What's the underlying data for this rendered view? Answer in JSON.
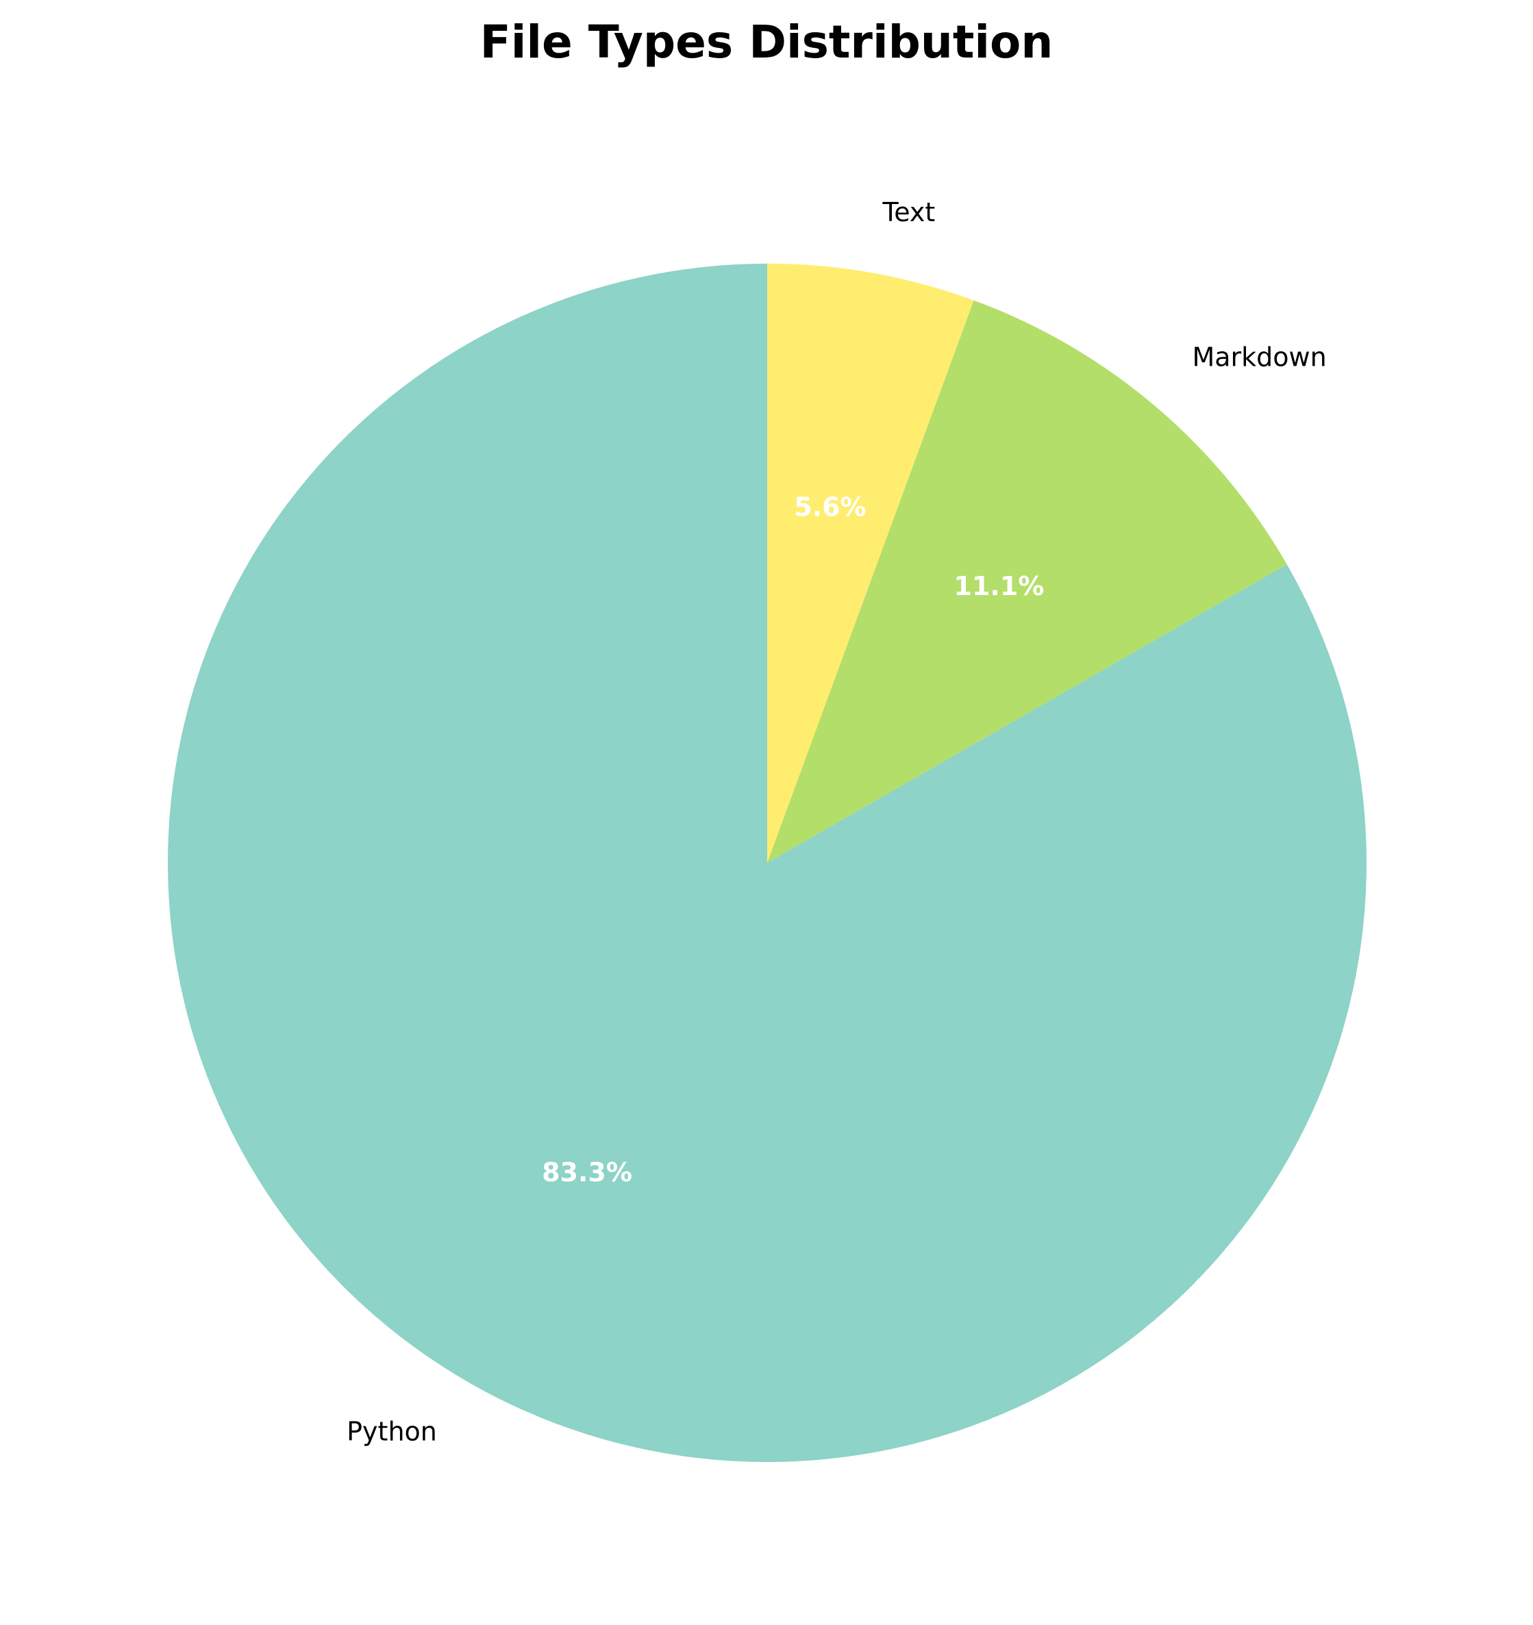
{
  "chart_data": {
    "type": "pie",
    "title": "File Types Distribution",
    "slices": [
      {
        "label": "Python",
        "value": 83.3,
        "pct_label": "83.3%",
        "color": "#8dd3c7"
      },
      {
        "label": "Markdown",
        "value": 11.1,
        "pct_label": "11.1%",
        "color": "#b3de69"
      },
      {
        "label": "Text",
        "value": 5.6,
        "pct_label": "5.6%",
        "color": "#ffed6f"
      }
    ],
    "start_angle_deg": 90,
    "direction": "clockwise"
  }
}
